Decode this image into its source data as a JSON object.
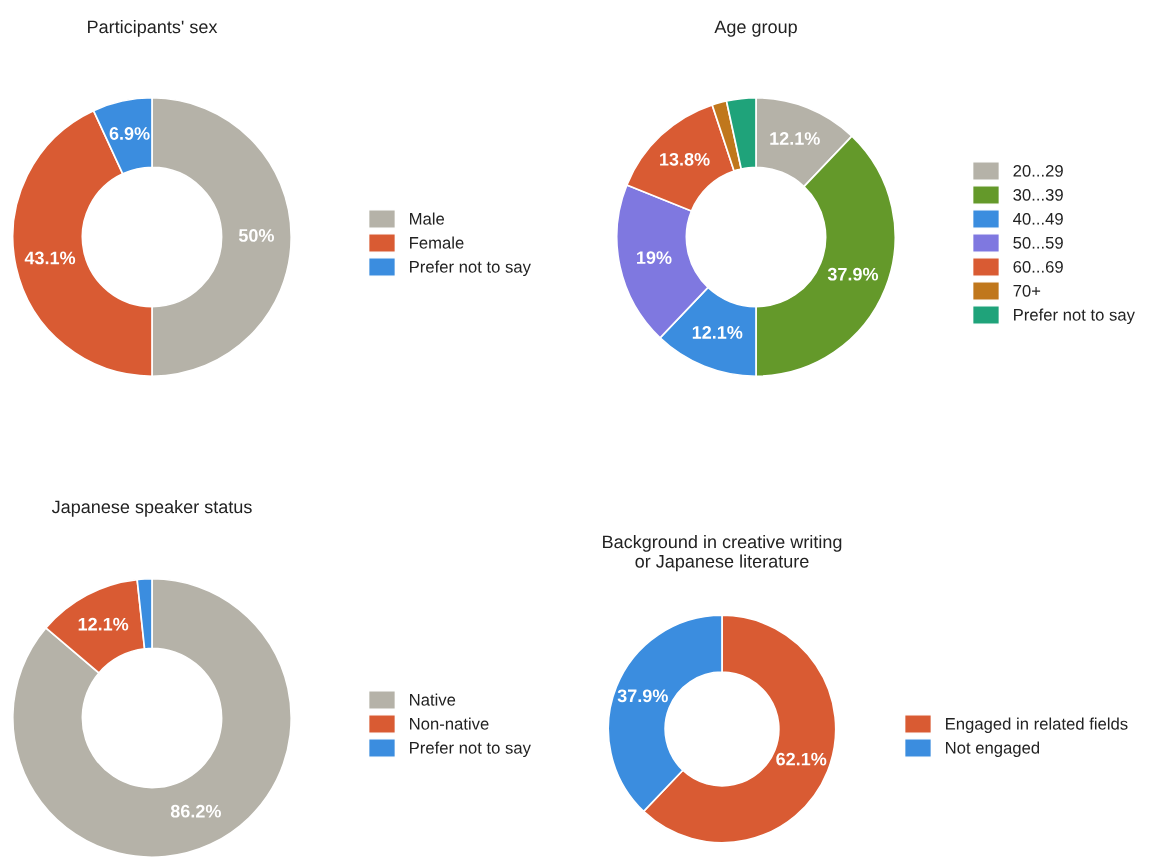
{
  "chart_data": [
    {
      "type": "donut",
      "title": "Participants' sex",
      "categories": [
        "Male",
        "Female",
        "Prefer not to say"
      ],
      "values": [
        50,
        43.1,
        6.9
      ],
      "colors": [
        "#b5b2a8",
        "#d95b33",
        "#3b8ddf"
      ],
      "value_labels": [
        "50%",
        "43.1%",
        "6.9%"
      ],
      "legend": "right"
    },
    {
      "type": "donut",
      "title": "Age group",
      "categories": [
        "20...29",
        "30...39",
        "40...49",
        "50...59",
        "60...69",
        "70+",
        "Prefer not to say"
      ],
      "values": [
        12.1,
        37.9,
        12.1,
        19,
        13.8,
        1.7,
        3.4
      ],
      "colors": [
        "#b5b2a8",
        "#64992a",
        "#3b8ddf",
        "#7f78e0",
        "#d95b33",
        "#c0771c",
        "#1fa37a"
      ],
      "value_labels": [
        "12.1%",
        "37.9%",
        "12.1%",
        "19%",
        "13.8%",
        null,
        null
      ],
      "legend": "right"
    },
    {
      "type": "donut",
      "title": "Japanese speaker status",
      "categories": [
        "Native",
        "Non-native",
        "Prefer not to say"
      ],
      "values": [
        86.2,
        12.1,
        1.7
      ],
      "colors": [
        "#b5b2a8",
        "#d95b33",
        "#3b8ddf"
      ],
      "value_labels": [
        "86.2%",
        "12.1%",
        null
      ],
      "legend": "right"
    },
    {
      "type": "donut",
      "title": "Background in creative writing\nor Japanese literature",
      "categories": [
        "Engaged in related fields",
        "Not engaged"
      ],
      "values": [
        62.1,
        37.9
      ],
      "colors": [
        "#d95b33",
        "#3b8ddf"
      ],
      "value_labels": [
        "62.1%",
        "37.9%"
      ],
      "legend": "right"
    }
  ]
}
